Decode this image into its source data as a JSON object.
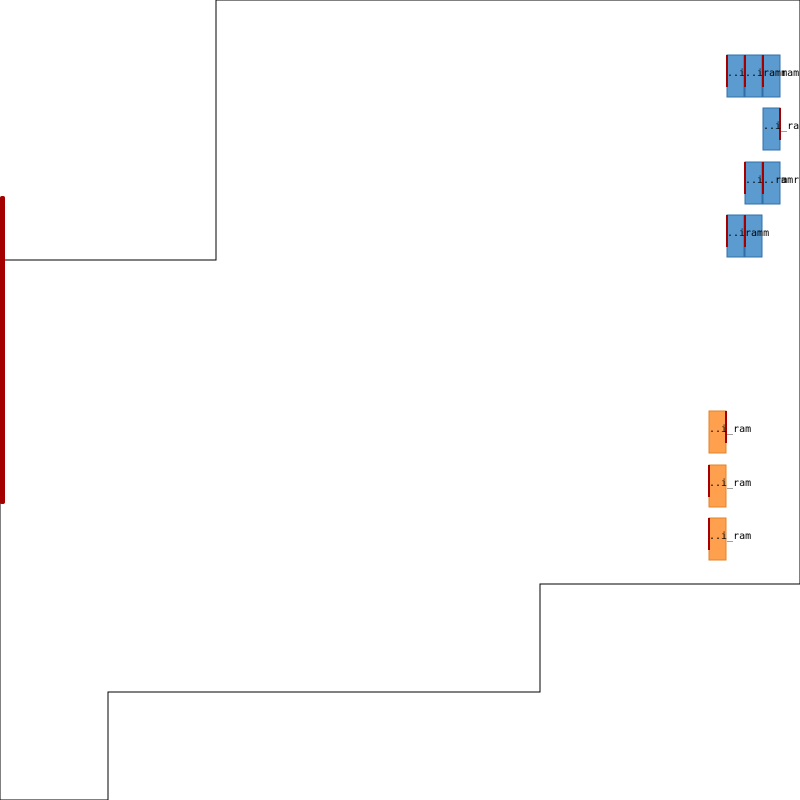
{
  "colors": {
    "outline": "#000000",
    "pin_bar": "#a50000",
    "macro_blue_fill": "#5b9bd0",
    "macro_blue_stroke": "#2f6fa8",
    "macro_orange_fill": "#ffa04f",
    "macro_orange_stroke": "#e0832a",
    "pin_mark": "#a50000"
  },
  "macros": [
    {
      "label": "..i_ram",
      "group": "blue",
      "pin_side": "left"
    },
    {
      "label": "..i_ram",
      "group": "blue",
      "pin_side": "left"
    },
    {
      "label": "ramram",
      "group": "blue",
      "pin_side": "left"
    },
    {
      "label": "..i_ram",
      "group": "blue",
      "pin_side": "right"
    },
    {
      "label": "..i_ram",
      "group": "blue",
      "pin_side": "left"
    },
    {
      "label": "..ramram",
      "group": "blue",
      "pin_side": "left"
    },
    {
      "label": "..i_ram",
      "group": "blue",
      "pin_side": "left"
    },
    {
      "label": "ram",
      "group": "blue",
      "pin_side": "left"
    },
    {
      "label": "..i_ram",
      "group": "orange",
      "pin_side": "right"
    },
    {
      "label": "..i_ram",
      "group": "orange",
      "pin_side": "left"
    },
    {
      "label": "..i_ram",
      "group": "orange",
      "pin_side": "left"
    }
  ]
}
